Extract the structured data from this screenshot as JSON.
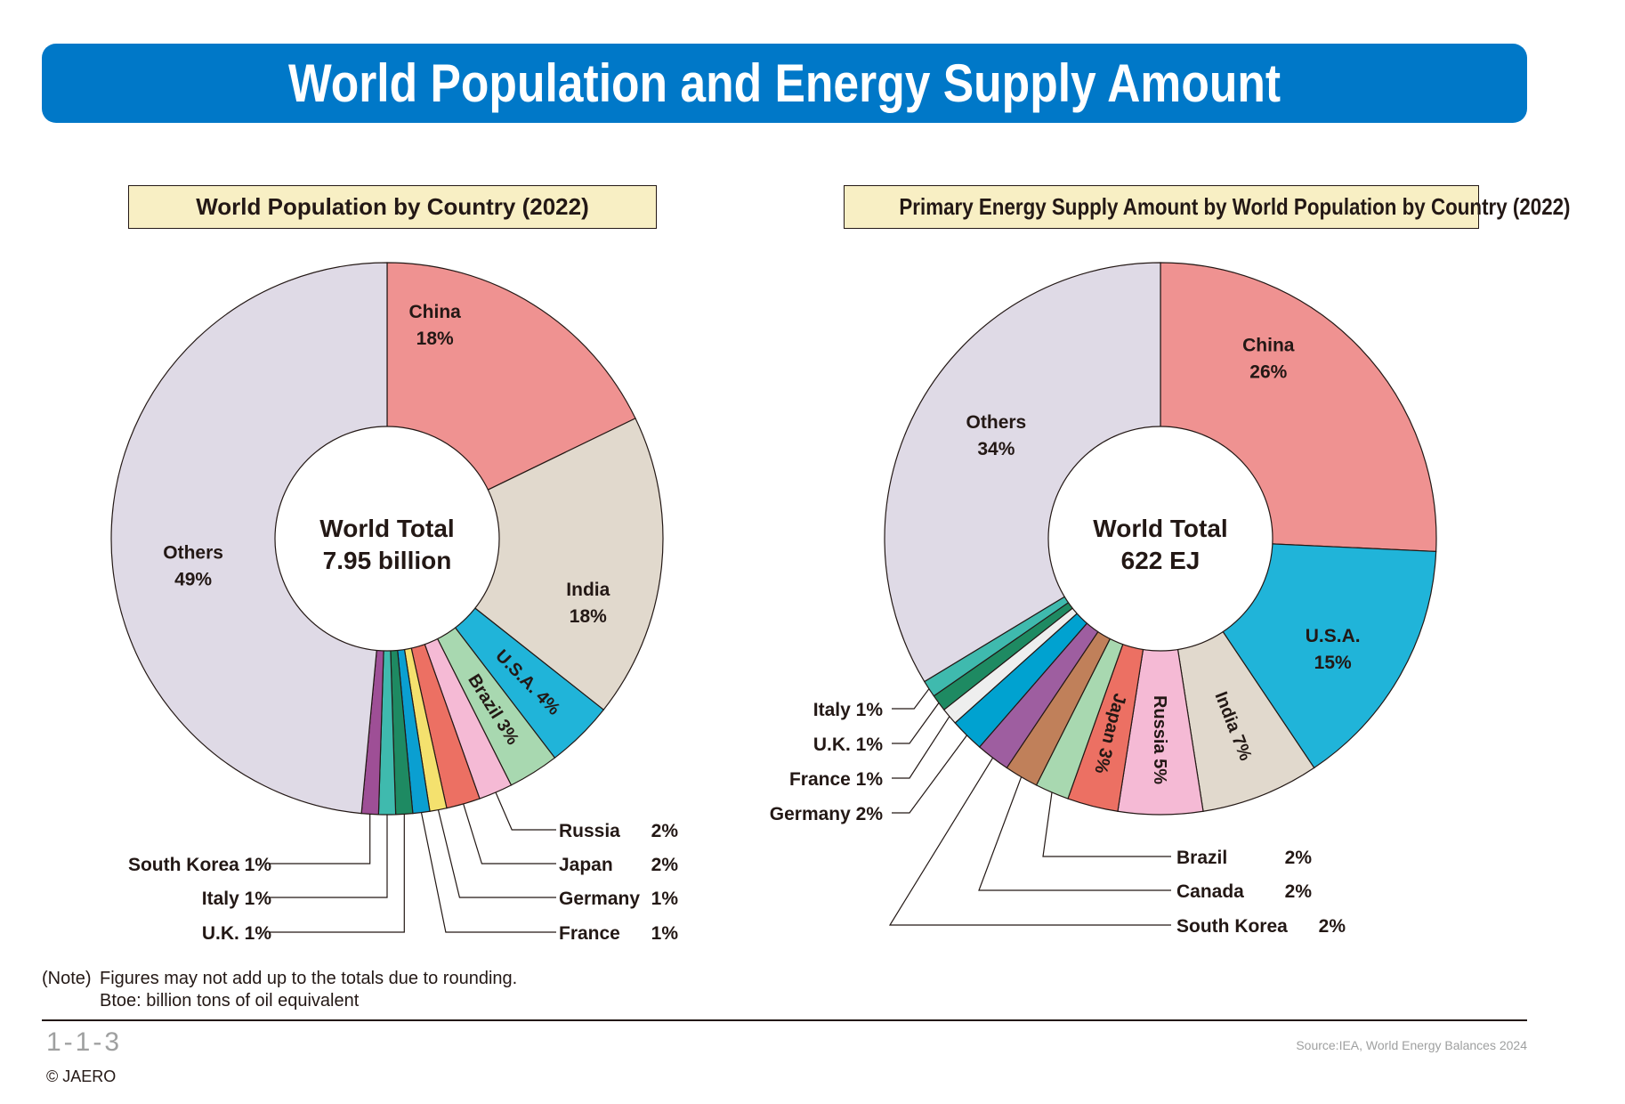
{
  "title": "World Population and Energy Supply Amount",
  "chart_data": [
    {
      "type": "pie",
      "title": "World Population by Country (2022)",
      "center_label": [
        "World Total",
        "7.95 billion"
      ],
      "unit": "%",
      "slices": [
        {
          "name": "China",
          "value": 18,
          "color": "#ef9291",
          "label": "inside"
        },
        {
          "name": "India",
          "value": 18,
          "color": "#e1d9cd",
          "label": "inside"
        },
        {
          "name": "U.S.A.",
          "value": 4,
          "color": "#20b4d9",
          "label": "radial"
        },
        {
          "name": "Brazil",
          "value": 3,
          "color": "#a8d8b0",
          "label": "radial"
        },
        {
          "name": "Russia",
          "value": 2,
          "color": "#f5bad5",
          "label": "leader-right"
        },
        {
          "name": "Japan",
          "value": 2,
          "color": "#ec7063",
          "label": "leader-right"
        },
        {
          "name": "Germany",
          "value": 1,
          "color": "#f4e16e",
          "label": "leader-right"
        },
        {
          "name": "France",
          "value": 1,
          "color": "#0a9fd1",
          "label": "leader-right"
        },
        {
          "name": "U.K.",
          "value": 1,
          "color": "#1e8a62",
          "label": "leader-left"
        },
        {
          "name": "Italy",
          "value": 1,
          "color": "#3fbaae",
          "label": "leader-left"
        },
        {
          "name": "South Korea",
          "value": 1,
          "color": "#9e4f96",
          "label": "leader-left"
        },
        {
          "name": "Others",
          "value": 49,
          "color": "#dfdae6",
          "label": "inside"
        }
      ]
    },
    {
      "type": "pie",
      "title": "Primary Energy Supply Amount by World Population by Country (2022)",
      "center_label": [
        "World Total",
        "622 EJ"
      ],
      "unit": "%",
      "slices": [
        {
          "name": "China",
          "value": 26,
          "color": "#ef9291",
          "label": "inside"
        },
        {
          "name": "U.S.A.",
          "value": 15,
          "color": "#20b4d9",
          "label": "inside"
        },
        {
          "name": "India",
          "value": 7,
          "color": "#e1d9cd",
          "label": "radial"
        },
        {
          "name": "Russia",
          "value": 5,
          "color": "#f5bad5",
          "label": "radial"
        },
        {
          "name": "Japan",
          "value": 3,
          "color": "#ec7063",
          "label": "radial"
        },
        {
          "name": "Brazil",
          "value": 2,
          "color": "#a8d8b0",
          "label": "leader-right"
        },
        {
          "name": "Canada",
          "value": 2,
          "color": "#c0805a",
          "label": "leader-right"
        },
        {
          "name": "South Korea",
          "value": 2,
          "color": "#9e5ea0",
          "label": "leader-right"
        },
        {
          "name": "Germany",
          "value": 2,
          "color": "#00a2d0",
          "label": "leader-left"
        },
        {
          "name": "France",
          "value": 1,
          "color": "#eeeeee",
          "label": "leader-left"
        },
        {
          "name": "U.K.",
          "value": 1,
          "color": "#1e8a62",
          "label": "leader-left"
        },
        {
          "name": "Italy",
          "value": 1,
          "color": "#3fbaae",
          "label": "leader-left"
        },
        {
          "name": "Others",
          "value": 34,
          "color": "#dfdae6",
          "label": "inside"
        }
      ]
    }
  ],
  "note": {
    "label": "(Note)",
    "line1": "Figures may not add up to the totals due to rounding.",
    "line2": "Btoe: billion tons of oil equivalent"
  },
  "page_number": "1-1-3",
  "copyright": "© JAERO",
  "source": "Source:IEA, World Energy Balances 2024"
}
